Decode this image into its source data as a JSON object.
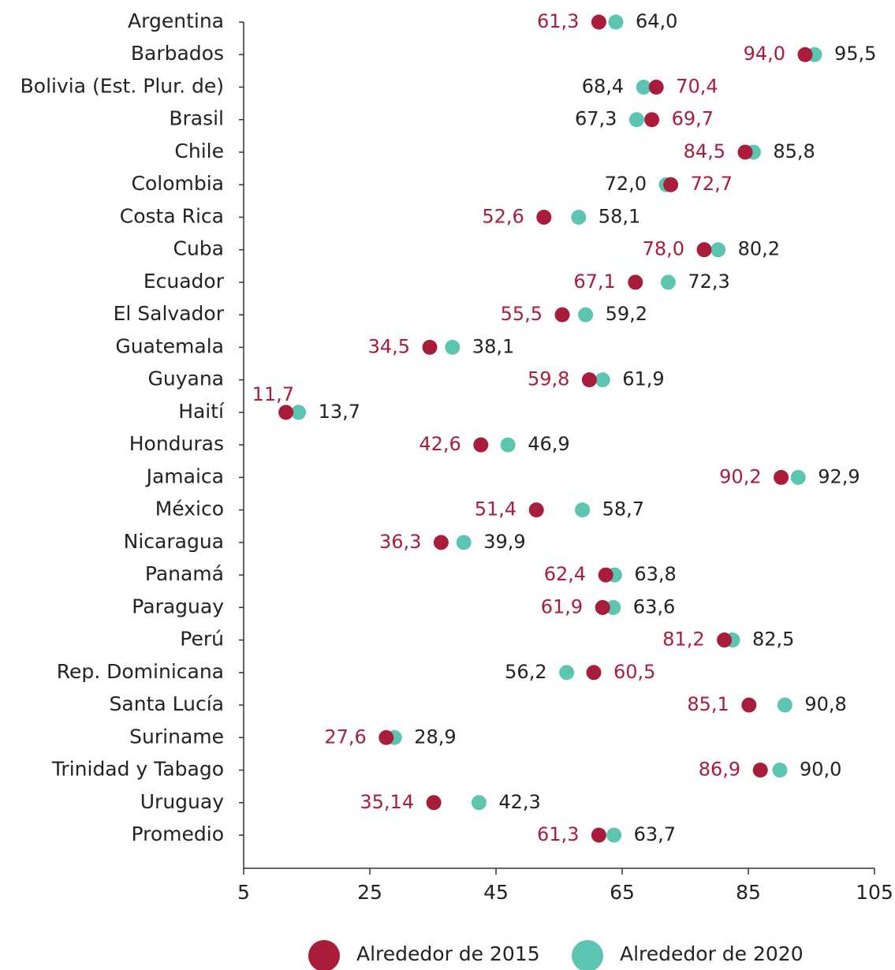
{
  "chart_data": {
    "type": "dot",
    "categories": [
      "Argentina",
      "Barbados",
      "Bolivia (Est. Plur. de)",
      "Brasil",
      "Chile",
      "Colombia",
      "Costa Rica",
      "Cuba",
      "Ecuador",
      "El Salvador",
      "Guatemala",
      "Guyana",
      "Haití",
      "Honduras",
      "Jamaica",
      "México",
      "Nicaragua",
      "Panamá",
      "Paraguay",
      "Perú",
      "Rep. Dominicana",
      "Santa Lucía",
      "Suriname",
      "Trinidad y Tabago",
      "Uruguay",
      "Promedio"
    ],
    "series": [
      {
        "name": "Alrededor de 2015",
        "color": "#a91d3a",
        "values": [
          61.3,
          94.0,
          70.4,
          69.7,
          84.5,
          72.7,
          52.6,
          78.0,
          67.1,
          55.5,
          34.5,
          59.8,
          11.7,
          42.6,
          90.2,
          51.4,
          36.3,
          62.4,
          61.9,
          81.2,
          60.5,
          85.1,
          27.6,
          86.9,
          35.14,
          61.3
        ],
        "value_labels": [
          "61,3",
          "94,0",
          "70,4",
          "69,7",
          "84,5",
          "72,7",
          "52,6",
          "78,0",
          "67,1",
          "55,5",
          "34,5",
          "59,8",
          "11,7",
          "42,6",
          "90,2",
          "51,4",
          "36,3",
          "62,4",
          "61,9",
          "81,2",
          "60,5",
          "85,1",
          "27,6",
          "86,9",
          "35,14",
          "61,3"
        ]
      },
      {
        "name": "Alrededor de 2020",
        "color": "#5cc5b2",
        "values": [
          64.0,
          95.5,
          68.4,
          67.3,
          85.8,
          72.0,
          58.1,
          80.2,
          72.3,
          59.2,
          38.1,
          61.9,
          13.7,
          46.9,
          92.9,
          58.7,
          39.9,
          63.8,
          63.6,
          82.5,
          56.2,
          90.8,
          28.9,
          90.0,
          42.3,
          63.7
        ],
        "value_labels": [
          "64,0",
          "95,5",
          "68,4",
          "67,3",
          "85,8",
          "72,0",
          "58,1",
          "80,2",
          "72,3",
          "59,2",
          "38,1",
          "61,9",
          "13,7",
          "46,9",
          "92,9",
          "58,7",
          "39,9",
          "63,8",
          "63,6",
          "82,5",
          "56,2",
          "90,8",
          "28,9",
          "90,0",
          "42,3",
          "63,7"
        ]
      }
    ],
    "xlim": [
      5,
      105
    ],
    "xticks": [
      5,
      25,
      45,
      65,
      85,
      105
    ]
  }
}
